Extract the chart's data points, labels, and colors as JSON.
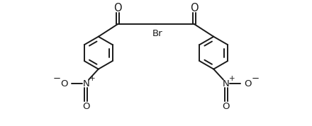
{
  "bg_color": "#ffffff",
  "line_color": "#1a1a1a",
  "line_width": 1.4,
  "text_color": "#1a1a1a",
  "font_size": 9.5,
  "figsize": [
    4.4,
    1.78
  ],
  "dpi": 100,
  "ring_r": 0.72,
  "lcx": -2.55,
  "lcy": -0.1,
  "rcx": 2.55,
  "rcy": -0.1,
  "xlim": [
    -5.2,
    5.2
  ],
  "ylim": [
    -3.3,
    2.2
  ]
}
